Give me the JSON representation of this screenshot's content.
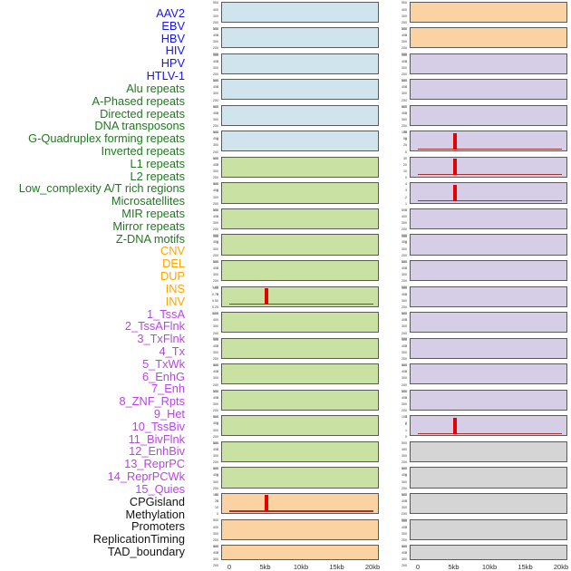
{
  "figure_title": "",
  "chart_data": {
    "type": "area",
    "subtype": "small-multiples-genomic-feature-density",
    "x_axis": {
      "tick_labels": [
        "0",
        "5kb",
        "10kb",
        "15kb",
        "20kb"
      ],
      "range_kb": [
        0,
        20
      ],
      "grid": false
    },
    "default_yticks": [
      "500",
      "400",
      "300",
      "200",
      "100",
      "0"
    ],
    "colors": {
      "panel_border": "#5a5a5a",
      "spike": "#e60000",
      "baseline": "#a23430",
      "ytick_text": "#3a3a3a",
      "xtick_text": "#2e2e2e"
    },
    "groups": {
      "virus": {
        "label_color": "#1616f0",
        "panel_fill": "#d0e4ee"
      },
      "repeat": {
        "label_color": "#217821",
        "panel_fill": "#c9e2a4"
      },
      "sv": {
        "label_color": "#ffa500",
        "panel_fill": "#fbd3a2"
      },
      "chromatin_state": {
        "label_color": "#b944e3",
        "panel_fill": "#d6cee6"
      },
      "other": {
        "label_color": "#141414",
        "panel_fill": "#d5d5d5"
      }
    },
    "panels": [
      {
        "feature": "AAV2",
        "group": "virus",
        "column": "left",
        "row": 1
      },
      {
        "feature": "EBV",
        "group": "virus",
        "column": "left",
        "row": 2
      },
      {
        "feature": "HBV",
        "group": "virus",
        "column": "left",
        "row": 3
      },
      {
        "feature": "HIV",
        "group": "virus",
        "column": "left",
        "row": 4
      },
      {
        "feature": "HPV",
        "group": "virus",
        "column": "left",
        "row": 5
      },
      {
        "feature": "HTLV-1",
        "group": "virus",
        "column": "left",
        "row": 6
      },
      {
        "feature": "Alu repeats",
        "group": "repeat",
        "column": "left",
        "row": 7
      },
      {
        "feature": "A-Phased repeats",
        "group": "repeat",
        "column": "left",
        "row": 8
      },
      {
        "feature": "Directed repeats",
        "group": "repeat",
        "column": "left",
        "row": 9
      },
      {
        "feature": "DNA transposons",
        "group": "repeat",
        "column": "left",
        "row": 10
      },
      {
        "feature": "G-Quadruplex forming repeats",
        "group": "repeat",
        "column": "left",
        "row": 11
      },
      {
        "feature": "Inverted repeats",
        "group": "repeat",
        "column": "left",
        "row": 12,
        "yticks": [
          "1.00",
          "0.75",
          "0.50",
          "0.25",
          "0.00"
        ],
        "spike_kb": 5,
        "baseline": true
      },
      {
        "feature": "L1 repeats",
        "group": "repeat",
        "column": "left",
        "row": 13
      },
      {
        "feature": "L2 repeats",
        "group": "repeat",
        "column": "left",
        "row": 14
      },
      {
        "feature": "Low_complexity A/T rich regions",
        "group": "repeat",
        "column": "left",
        "row": 15
      },
      {
        "feature": "Microsatellites",
        "group": "repeat",
        "column": "left",
        "row": 16
      },
      {
        "feature": "MIR repeats",
        "group": "repeat",
        "column": "left",
        "row": 17
      },
      {
        "feature": "Mirror repeats",
        "group": "repeat",
        "column": "left",
        "row": 18
      },
      {
        "feature": "Z-DNA motifs",
        "group": "repeat",
        "column": "left",
        "row": 19
      },
      {
        "feature": "CNV",
        "group": "sv",
        "column": "left",
        "row": 20,
        "yticks": [
          "30",
          "20",
          "10",
          "0"
        ],
        "spike_kb": 5,
        "baseline": true
      },
      {
        "feature": "DEL",
        "group": "sv",
        "column": "left",
        "row": 21
      },
      {
        "feature": "DUP",
        "group": "sv",
        "column": "left",
        "row": 22
      },
      {
        "feature": "INS",
        "group": "sv",
        "column": "right",
        "row": 1
      },
      {
        "feature": "INV",
        "group": "sv",
        "column": "right",
        "row": 2
      },
      {
        "feature": "1_TssA",
        "group": "chromatin_state",
        "column": "right",
        "row": 3
      },
      {
        "feature": "2_TssAFlnk",
        "group": "chromatin_state",
        "column": "right",
        "row": 4
      },
      {
        "feature": "3_TxFlnk",
        "group": "chromatin_state",
        "column": "right",
        "row": 5
      },
      {
        "feature": "4_Tx",
        "group": "chromatin_state",
        "column": "right",
        "row": 6,
        "yticks": [
          "75",
          "50",
          "25",
          "0"
        ],
        "spike_kb": 5,
        "baseline": true
      },
      {
        "feature": "5_TxWk",
        "group": "chromatin_state",
        "column": "right",
        "row": 7,
        "yticks": [
          "30",
          "20",
          "10",
          "0"
        ],
        "spike_kb": 5,
        "baseline": true
      },
      {
        "feature": "6_EnhG",
        "group": "chromatin_state",
        "column": "right",
        "row": 8,
        "yticks": [
          "4",
          "3",
          "2",
          "1",
          "0"
        ],
        "spike_kb": 5,
        "baseline": true
      },
      {
        "feature": "7_Enh",
        "group": "chromatin_state",
        "column": "right",
        "row": 9
      },
      {
        "feature": "8_ZNF_Rpts",
        "group": "chromatin_state",
        "column": "right",
        "row": 10
      },
      {
        "feature": "9_Het",
        "group": "chromatin_state",
        "column": "right",
        "row": 11
      },
      {
        "feature": "10_TssBiv",
        "group": "chromatin_state",
        "column": "right",
        "row": 12
      },
      {
        "feature": "11_BivFlnk",
        "group": "chromatin_state",
        "column": "right",
        "row": 13
      },
      {
        "feature": "12_EnhBiv",
        "group": "chromatin_state",
        "column": "right",
        "row": 14
      },
      {
        "feature": "13_ReprPC",
        "group": "chromatin_state",
        "column": "right",
        "row": 15
      },
      {
        "feature": "14_ReprPCWk",
        "group": "chromatin_state",
        "column": "right",
        "row": 16
      },
      {
        "feature": "15_Quies",
        "group": "chromatin_state",
        "column": "right",
        "row": 17,
        "yticks": [
          "3",
          "2",
          "1",
          "0"
        ],
        "spike_kb": 5,
        "baseline": true
      },
      {
        "feature": "CPGisland",
        "group": "other",
        "column": "right",
        "row": 18
      },
      {
        "feature": "Methylation",
        "group": "other",
        "column": "right",
        "row": 19
      },
      {
        "feature": "Promoters",
        "group": "other",
        "column": "right",
        "row": 20
      },
      {
        "feature": "ReplicationTiming",
        "group": "other",
        "column": "right",
        "row": 21
      },
      {
        "feature": "TAD_boundary",
        "group": "other",
        "column": "right",
        "row": 22
      }
    ]
  }
}
